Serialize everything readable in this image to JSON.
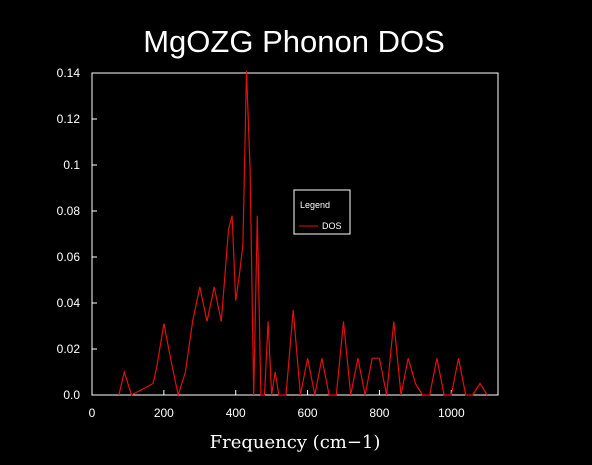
{
  "chart_data": {
    "type": "line",
    "title": "MgOZG Phonon DOS",
    "xlabel": "Frequency (cm−1)",
    "ylabel": "",
    "xlim": [
      0,
      1130
    ],
    "ylim": [
      0,
      0.14
    ],
    "xticks": [
      0,
      200,
      400,
      600,
      800,
      1000
    ],
    "xtick_labels": [
      "0",
      "200",
      "400",
      "600",
      "800",
      "1000"
    ],
    "yticks": [
      0.0,
      0.02,
      0.04,
      0.06,
      0.08,
      0.1,
      0.12,
      0.14
    ],
    "ytick_labels": [
      "0.0",
      "0.02",
      "0.04",
      "0.06",
      "0.08",
      "0.1",
      "0.12",
      "0.14"
    ],
    "legend": {
      "title": "Legend",
      "position": "center-right",
      "entries": [
        "DOS"
      ]
    },
    "series": [
      {
        "name": "DOS",
        "color": "#e01010",
        "x": [
          75,
          90,
          100,
          110,
          170,
          180,
          200,
          220,
          240,
          260,
          280,
          300,
          320,
          340,
          360,
          380,
          390,
          400,
          410,
          420,
          430,
          440,
          450,
          460,
          470,
          480,
          490,
          500,
          510,
          520,
          540,
          560,
          580,
          600,
          620,
          640,
          660,
          680,
          700,
          720,
          740,
          760,
          780,
          800,
          820,
          840,
          860,
          880,
          900,
          920,
          940,
          960,
          980,
          1000,
          1020,
          1040,
          1060,
          1080,
          1100
        ],
        "y": [
          0,
          0.01,
          0.005,
          0,
          0.005,
          0.012,
          0.031,
          0.015,
          0,
          0.01,
          0.032,
          0.047,
          0.032,
          0.047,
          0.032,
          0.072,
          0.078,
          0.041,
          0.052,
          0.065,
          0.141,
          0.098,
          0,
          0.078,
          0,
          0,
          0.032,
          0,
          0.01,
          0,
          0,
          0.037,
          0,
          0.016,
          0,
          0.016,
          0,
          0,
          0.032,
          0,
          0.016,
          0,
          0.016,
          0.016,
          0,
          0.032,
          0,
          0.016,
          0.005,
          0,
          0,
          0.016,
          0,
          0,
          0.016,
          0,
          0,
          0.005,
          0
        ]
      }
    ]
  }
}
